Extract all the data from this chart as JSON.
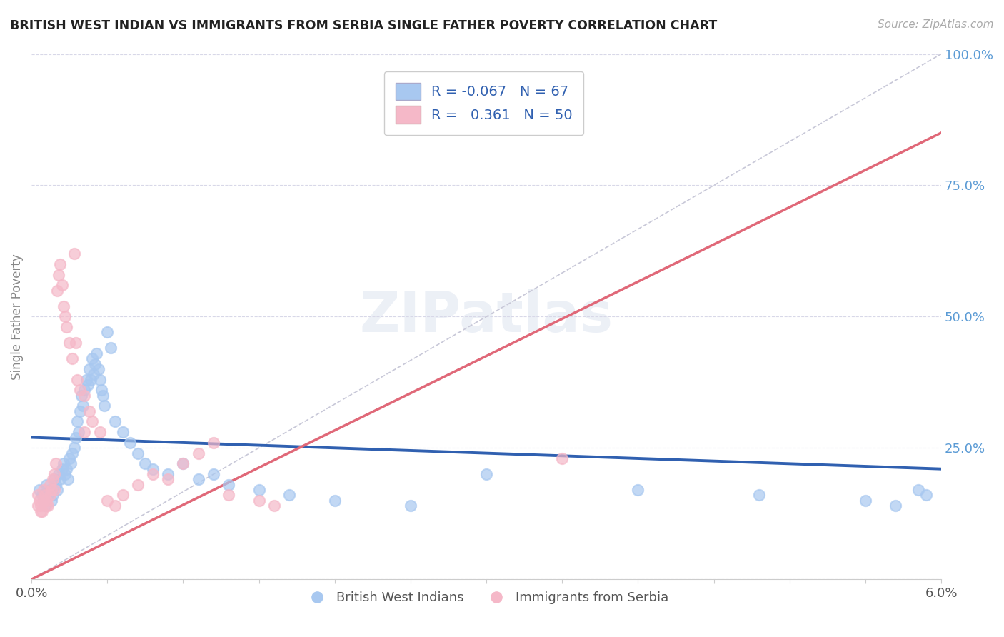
{
  "title": "BRITISH WEST INDIAN VS IMMIGRANTS FROM SERBIA SINGLE FATHER POVERTY CORRELATION CHART",
  "source": "Source: ZipAtlas.com",
  "ylabel": "Single Father Poverty",
  "xmin": 0.0,
  "xmax": 6.0,
  "ymin": 0.0,
  "ymax": 100.0,
  "yticks": [
    0,
    25,
    50,
    75,
    100
  ],
  "ytick_labels": [
    "",
    "25.0%",
    "50.0%",
    "75.0%",
    "100.0%"
  ],
  "blue_R": -0.067,
  "blue_N": 67,
  "pink_R": 0.361,
  "pink_N": 50,
  "blue_color": "#a8c8f0",
  "pink_color": "#f5b8c8",
  "blue_line_color": "#3060b0",
  "pink_line_color": "#e06878",
  "ref_line_color": "#c8c8d8",
  "grid_color": "#d8d8e8",
  "blue_scatter": [
    [
      0.05,
      17
    ],
    [
      0.07,
      16
    ],
    [
      0.08,
      15
    ],
    [
      0.09,
      14
    ],
    [
      0.1,
      18
    ],
    [
      0.11,
      16
    ],
    [
      0.12,
      17
    ],
    [
      0.13,
      15
    ],
    [
      0.14,
      16
    ],
    [
      0.15,
      19
    ],
    [
      0.16,
      18
    ],
    [
      0.17,
      17
    ],
    [
      0.18,
      20
    ],
    [
      0.19,
      19
    ],
    [
      0.2,
      21
    ],
    [
      0.21,
      22
    ],
    [
      0.22,
      20
    ],
    [
      0.23,
      21
    ],
    [
      0.24,
      19
    ],
    [
      0.25,
      23
    ],
    [
      0.26,
      22
    ],
    [
      0.27,
      24
    ],
    [
      0.28,
      25
    ],
    [
      0.29,
      27
    ],
    [
      0.3,
      30
    ],
    [
      0.31,
      28
    ],
    [
      0.32,
      32
    ],
    [
      0.33,
      35
    ],
    [
      0.34,
      33
    ],
    [
      0.35,
      36
    ],
    [
      0.36,
      38
    ],
    [
      0.37,
      37
    ],
    [
      0.38,
      40
    ],
    [
      0.39,
      38
    ],
    [
      0.4,
      42
    ],
    [
      0.41,
      39
    ],
    [
      0.42,
      41
    ],
    [
      0.43,
      43
    ],
    [
      0.44,
      40
    ],
    [
      0.45,
      38
    ],
    [
      0.46,
      36
    ],
    [
      0.47,
      35
    ],
    [
      0.48,
      33
    ],
    [
      0.5,
      47
    ],
    [
      0.52,
      44
    ],
    [
      0.55,
      30
    ],
    [
      0.6,
      28
    ],
    [
      0.65,
      26
    ],
    [
      0.7,
      24
    ],
    [
      0.75,
      22
    ],
    [
      0.8,
      21
    ],
    [
      0.9,
      20
    ],
    [
      1.0,
      22
    ],
    [
      1.1,
      19
    ],
    [
      1.2,
      20
    ],
    [
      1.3,
      18
    ],
    [
      1.5,
      17
    ],
    [
      1.7,
      16
    ],
    [
      2.0,
      15
    ],
    [
      2.5,
      14
    ],
    [
      3.0,
      20
    ],
    [
      4.0,
      17
    ],
    [
      4.8,
      16
    ],
    [
      5.5,
      15
    ],
    [
      5.7,
      14
    ],
    [
      5.9,
      16
    ],
    [
      5.85,
      17
    ]
  ],
  "pink_scatter": [
    [
      0.04,
      16
    ],
    [
      0.05,
      15
    ],
    [
      0.06,
      14
    ],
    [
      0.07,
      13
    ],
    [
      0.08,
      17
    ],
    [
      0.09,
      16
    ],
    [
      0.1,
      15
    ],
    [
      0.11,
      14
    ],
    [
      0.12,
      18
    ],
    [
      0.13,
      17
    ],
    [
      0.14,
      19
    ],
    [
      0.15,
      20
    ],
    [
      0.16,
      22
    ],
    [
      0.17,
      55
    ],
    [
      0.18,
      58
    ],
    [
      0.19,
      60
    ],
    [
      0.2,
      56
    ],
    [
      0.21,
      52
    ],
    [
      0.22,
      50
    ],
    [
      0.23,
      48
    ],
    [
      0.25,
      45
    ],
    [
      0.27,
      42
    ],
    [
      0.28,
      62
    ],
    [
      0.29,
      45
    ],
    [
      0.3,
      38
    ],
    [
      0.32,
      36
    ],
    [
      0.35,
      35
    ],
    [
      0.38,
      32
    ],
    [
      0.4,
      30
    ],
    [
      0.45,
      28
    ],
    [
      0.5,
      15
    ],
    [
      0.55,
      14
    ],
    [
      0.6,
      16
    ],
    [
      0.7,
      18
    ],
    [
      0.8,
      20
    ],
    [
      0.9,
      19
    ],
    [
      1.0,
      22
    ],
    [
      1.1,
      24
    ],
    [
      1.2,
      26
    ],
    [
      1.3,
      16
    ],
    [
      1.5,
      15
    ],
    [
      1.6,
      14
    ],
    [
      0.04,
      14
    ],
    [
      0.06,
      13
    ],
    [
      0.08,
      15
    ],
    [
      0.1,
      14
    ],
    [
      0.12,
      16
    ],
    [
      0.15,
      17
    ],
    [
      3.5,
      23
    ],
    [
      0.35,
      28
    ]
  ],
  "blue_trend_x": [
    0.0,
    6.0
  ],
  "blue_trend_y": [
    27.0,
    21.0
  ],
  "pink_trend_x": [
    0.0,
    6.0
  ],
  "pink_trend_y": [
    0.0,
    85.0
  ],
  "ref_line_x": [
    0.0,
    6.0
  ],
  "ref_line_y": [
    0.0,
    100.0
  ]
}
